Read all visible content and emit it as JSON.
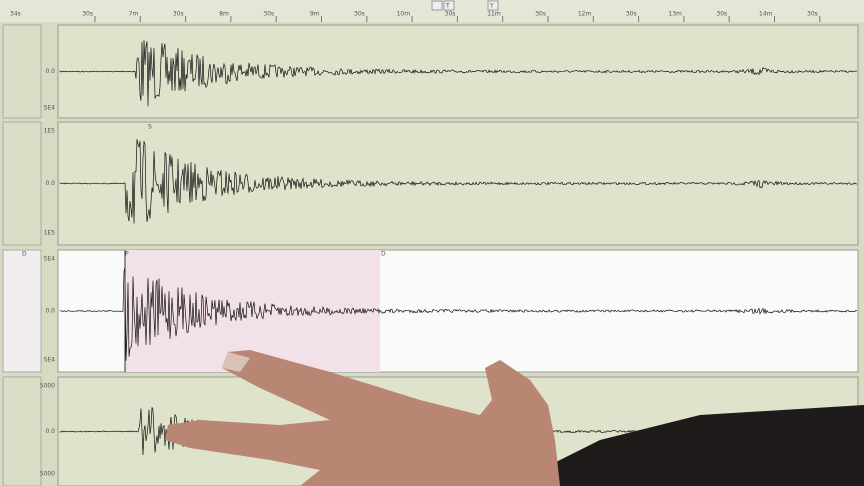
{
  "toolbar": {
    "left": "34s",
    "buttons": [
      "T",
      "Y"
    ]
  },
  "time_axis": {
    "labels": [
      "30s",
      "7m",
      "30s",
      "8m",
      "30s",
      "9m",
      "30s",
      "10m",
      "30s",
      "11m",
      "30s",
      "12m",
      "30s",
      "13m",
      "30s",
      "14m",
      "30s"
    ]
  },
  "panels": [
    {
      "labels": [
        "0.0",
        "5E4"
      ]
    },
    {
      "labels": [
        "1E5",
        "0.0",
        "1E5"
      ],
      "phase": "S"
    },
    {
      "labels": [
        "5E4",
        "0.0",
        "5E4"
      ],
      "phase": "P",
      "markers": [
        "D",
        "D"
      ]
    },
    {
      "labels": [
        "5000",
        "0.0",
        "5000"
      ]
    }
  ]
}
